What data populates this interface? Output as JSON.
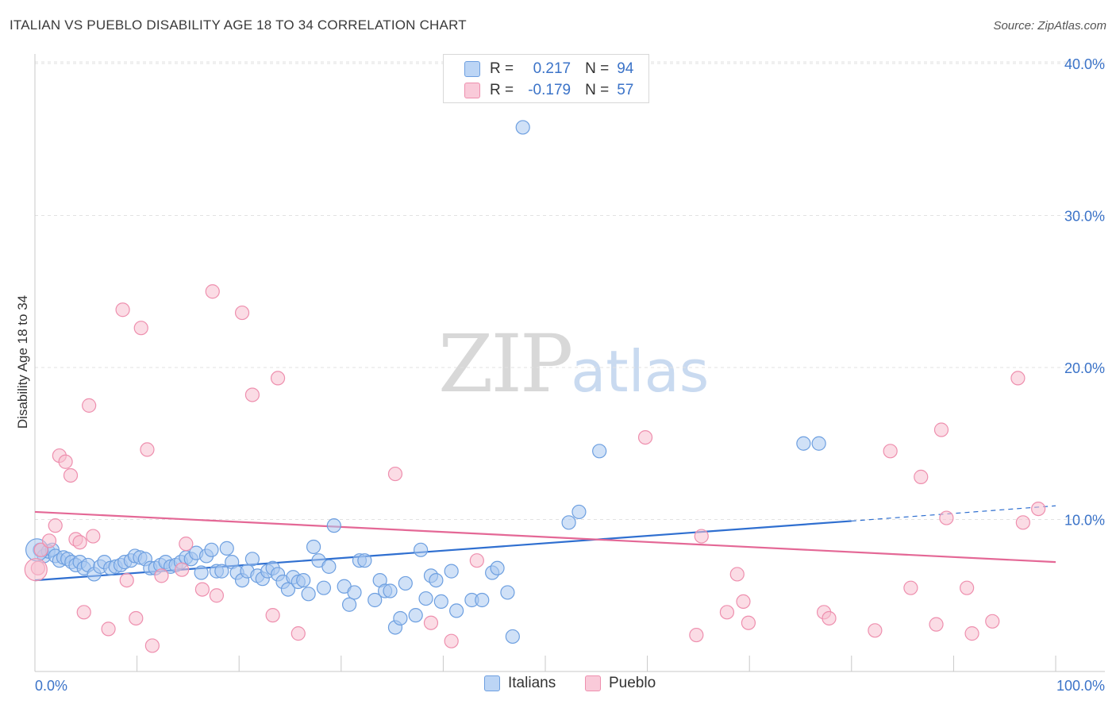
{
  "title": "ITALIAN VS PUEBLO DISABILITY AGE 18 TO 34 CORRELATION CHART",
  "source": "Source: ZipAtlas.com",
  "watermark": {
    "zip": "ZIP",
    "atlas": "atlas"
  },
  "legend_top": [
    {
      "r_label": "R =",
      "r_value": "0.217",
      "n_label": "N =",
      "n_value": "94"
    },
    {
      "r_label": "R =",
      "r_value": "-0.179",
      "n_label": "N =",
      "n_value": "57"
    }
  ],
  "legend_bottom": [
    "Italians",
    "Pueblo"
  ],
  "colors": {
    "italians_fill": "#a9c8f0",
    "italians_stroke": "#6d9fe0",
    "italians_line": "#2f6fd0",
    "pueblo_fill": "#f7bfd0",
    "pueblo_stroke": "#ee8fae",
    "pueblo_line": "#e46896",
    "tick_label": "#3b73c8"
  },
  "chart_data": {
    "type": "scatter",
    "title": "ITALIAN VS PUEBLO DISABILITY AGE 18 TO 34 CORRELATION CHART",
    "xlabel": "",
    "ylabel": "Disability Age 18 to 34",
    "xlim": [
      0,
      100
    ],
    "ylim": [
      0,
      40
    ],
    "x_tick_labels": [
      "0.0%",
      "100.0%"
    ],
    "y_ticks": [
      10,
      20,
      30,
      40
    ],
    "y_tick_labels": [
      "10.0%",
      "20.0%",
      "30.0%",
      "40.0%"
    ],
    "grid": true,
    "series": [
      {
        "name": "Italians",
        "R": 0.217,
        "N": 94,
        "trend": {
          "x0": 0,
          "y0": 6.0,
          "x1": 80,
          "y1": 9.9,
          "dash_x1": 100,
          "dash_y1": 10.9
        },
        "points": [
          [
            0.5,
            8.0
          ],
          [
            0.9,
            7.6
          ],
          [
            1.3,
            7.9
          ],
          [
            1.7,
            8.0
          ],
          [
            2.0,
            7.6
          ],
          [
            2.4,
            7.3
          ],
          [
            2.8,
            7.5
          ],
          [
            3.2,
            7.4
          ],
          [
            3.6,
            7.2
          ],
          [
            4.0,
            7.0
          ],
          [
            4.4,
            7.2
          ],
          [
            4.8,
            6.8
          ],
          [
            5.2,
            7.0
          ],
          [
            5.8,
            6.4
          ],
          [
            6.4,
            6.9
          ],
          [
            6.8,
            7.2
          ],
          [
            7.4,
            6.8
          ],
          [
            7.9,
            6.9
          ],
          [
            8.4,
            7.0
          ],
          [
            8.8,
            7.2
          ],
          [
            9.4,
            7.3
          ],
          [
            9.8,
            7.6
          ],
          [
            10.3,
            7.5
          ],
          [
            10.8,
            7.4
          ],
          [
            11.3,
            6.8
          ],
          [
            11.8,
            6.8
          ],
          [
            12.3,
            7.0
          ],
          [
            12.8,
            7.2
          ],
          [
            13.3,
            6.9
          ],
          [
            13.8,
            7.0
          ],
          [
            14.3,
            7.2
          ],
          [
            14.8,
            7.5
          ],
          [
            15.3,
            7.4
          ],
          [
            15.8,
            7.8
          ],
          [
            16.3,
            6.5
          ],
          [
            16.8,
            7.6
          ],
          [
            17.3,
            8.0
          ],
          [
            17.8,
            6.6
          ],
          [
            18.3,
            6.6
          ],
          [
            18.8,
            8.1
          ],
          [
            19.3,
            7.2
          ],
          [
            19.8,
            6.5
          ],
          [
            20.3,
            6.0
          ],
          [
            20.8,
            6.6
          ],
          [
            21.3,
            7.4
          ],
          [
            21.8,
            6.3
          ],
          [
            22.3,
            6.1
          ],
          [
            22.8,
            6.6
          ],
          [
            23.3,
            6.8
          ],
          [
            23.8,
            6.4
          ],
          [
            24.3,
            5.9
          ],
          [
            24.8,
            5.4
          ],
          [
            25.3,
            6.2
          ],
          [
            25.8,
            5.9
          ],
          [
            26.3,
            6.0
          ],
          [
            26.8,
            5.1
          ],
          [
            27.3,
            8.2
          ],
          [
            27.8,
            7.3
          ],
          [
            28.3,
            5.5
          ],
          [
            28.8,
            6.9
          ],
          [
            29.3,
            9.6
          ],
          [
            30.3,
            5.6
          ],
          [
            30.8,
            4.4
          ],
          [
            31.3,
            5.2
          ],
          [
            31.8,
            7.3
          ],
          [
            32.3,
            7.3
          ],
          [
            33.3,
            4.7
          ],
          [
            33.8,
            6.0
          ],
          [
            34.3,
            5.3
          ],
          [
            34.8,
            5.3
          ],
          [
            35.3,
            2.9
          ],
          [
            35.8,
            3.5
          ],
          [
            36.3,
            5.8
          ],
          [
            37.3,
            3.7
          ],
          [
            37.8,
            8.0
          ],
          [
            38.3,
            4.8
          ],
          [
            38.8,
            6.3
          ],
          [
            39.3,
            6.0
          ],
          [
            39.8,
            4.6
          ],
          [
            40.8,
            6.6
          ],
          [
            41.3,
            4.0
          ],
          [
            42.8,
            4.7
          ],
          [
            43.8,
            4.7
          ],
          [
            44.8,
            6.5
          ],
          [
            45.3,
            6.8
          ],
          [
            46.3,
            5.2
          ],
          [
            46.8,
            2.3
          ],
          [
            47.8,
            35.8
          ],
          [
            52.3,
            9.8
          ],
          [
            53.3,
            10.5
          ],
          [
            55.3,
            14.5
          ],
          [
            75.3,
            15.0
          ],
          [
            76.8,
            15.0
          ],
          [
            0.2,
            8.0
          ]
        ]
      },
      {
        "name": "Pueblo",
        "R": -0.179,
        "N": 57,
        "trend": {
          "x0": 0,
          "y0": 10.5,
          "x1": 100,
          "y1": 7.2
        },
        "points": [
          [
            0.3,
            6.8
          ],
          [
            0.6,
            8.0
          ],
          [
            1.4,
            8.6
          ],
          [
            2.0,
            9.6
          ],
          [
            2.4,
            14.2
          ],
          [
            3.0,
            13.8
          ],
          [
            3.5,
            12.9
          ],
          [
            4.0,
            8.7
          ],
          [
            4.4,
            8.5
          ],
          [
            4.8,
            3.9
          ],
          [
            5.3,
            17.5
          ],
          [
            5.7,
            8.9
          ],
          [
            7.2,
            2.8
          ],
          [
            8.6,
            23.8
          ],
          [
            9.0,
            6.0
          ],
          [
            9.9,
            3.5
          ],
          [
            10.4,
            22.6
          ],
          [
            11.0,
            14.6
          ],
          [
            11.5,
            1.7
          ],
          [
            12.4,
            6.3
          ],
          [
            14.4,
            6.7
          ],
          [
            14.8,
            8.4
          ],
          [
            16.4,
            5.4
          ],
          [
            17.4,
            25.0
          ],
          [
            17.8,
            5.0
          ],
          [
            20.3,
            23.6
          ],
          [
            21.3,
            18.2
          ],
          [
            23.3,
            3.7
          ],
          [
            23.8,
            19.3
          ],
          [
            25.8,
            2.5
          ],
          [
            35.3,
            13.0
          ],
          [
            38.8,
            3.2
          ],
          [
            40.8,
            2.0
          ],
          [
            43.3,
            7.3
          ],
          [
            59.8,
            15.4
          ],
          [
            64.8,
            2.4
          ],
          [
            65.3,
            8.9
          ],
          [
            67.8,
            3.9
          ],
          [
            68.8,
            6.4
          ],
          [
            69.4,
            4.6
          ],
          [
            69.9,
            3.2
          ],
          [
            77.3,
            3.9
          ],
          [
            77.8,
            3.5
          ],
          [
            82.3,
            2.7
          ],
          [
            83.8,
            14.5
          ],
          [
            85.8,
            5.5
          ],
          [
            86.8,
            12.8
          ],
          [
            88.3,
            3.1
          ],
          [
            88.8,
            15.9
          ],
          [
            89.3,
            10.1
          ],
          [
            91.3,
            5.5
          ],
          [
            91.8,
            2.5
          ],
          [
            93.8,
            3.3
          ],
          [
            96.3,
            19.3
          ],
          [
            96.8,
            9.8
          ],
          [
            98.3,
            10.7
          ],
          [
            0.1,
            6.7
          ]
        ]
      }
    ]
  }
}
